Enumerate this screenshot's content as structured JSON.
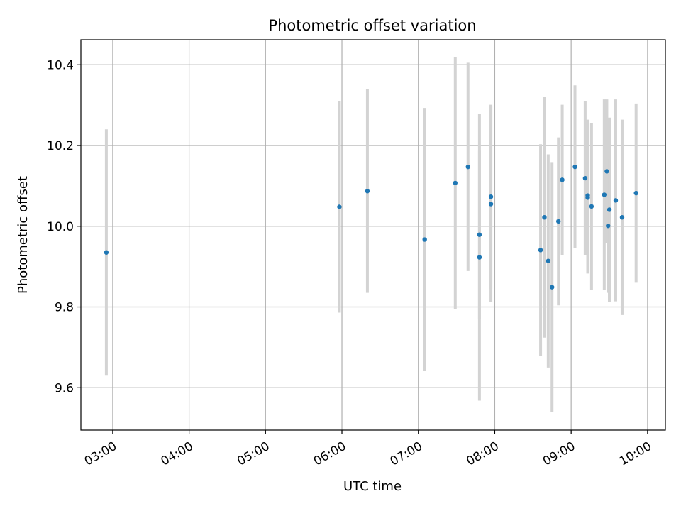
{
  "chart_data": {
    "type": "scatter",
    "title": "Photometric offset variation",
    "xlabel": "UTC time",
    "ylabel": "Photometric offset",
    "xlim": [
      "02:35",
      "10:14"
    ],
    "ylim": [
      9.495,
      10.462
    ],
    "xticks": [
      "03:00",
      "04:00",
      "05:00",
      "06:00",
      "07:00",
      "08:00",
      "09:00",
      "10:00"
    ],
    "yticks": [
      9.6,
      9.8,
      10.0,
      10.2,
      10.4
    ],
    "ytick_labels": [
      "9.6",
      "9.8",
      "10.0",
      "10.2",
      "10.4"
    ],
    "grid": true,
    "marker_color": "#1f77b4",
    "errorbar_color": "#d3d3d3",
    "series": [
      {
        "points": [
          {
            "t": "02:55",
            "y": 9.935,
            "err": 0.305
          },
          {
            "t": "05:58",
            "y": 10.048,
            "err": 0.262
          },
          {
            "t": "06:20",
            "y": 10.087,
            "err": 0.252
          },
          {
            "t": "07:05",
            "y": 9.967,
            "err": 0.326
          },
          {
            "t": "07:29",
            "y": 10.107,
            "err": 0.312
          },
          {
            "t": "07:39",
            "y": 10.147,
            "err": 0.258
          },
          {
            "t": "07:48",
            "y": 9.979,
            "err": 0.208
          },
          {
            "t": "07:48",
            "y": 9.923,
            "err": 0.355
          },
          {
            "t": "07:57",
            "y": 10.073,
            "err": 0.228
          },
          {
            "t": "07:57",
            "y": 10.055,
            "err": 0.242
          },
          {
            "t": "08:36",
            "y": 9.941,
            "err": 0.262
          },
          {
            "t": "08:39",
            "y": 10.022,
            "err": 0.298
          },
          {
            "t": "08:42",
            "y": 9.914,
            "err": 0.264
          },
          {
            "t": "08:45",
            "y": 9.849,
            "err": 0.31
          },
          {
            "t": "08:50",
            "y": 10.012,
            "err": 0.208
          },
          {
            "t": "08:53",
            "y": 10.115,
            "err": 0.186
          },
          {
            "t": "09:03",
            "y": 10.147,
            "err": 0.202
          },
          {
            "t": "09:11",
            "y": 10.119,
            "err": 0.19
          },
          {
            "t": "09:13",
            "y": 10.076,
            "err": 0.188
          },
          {
            "t": "09:13",
            "y": 10.071,
            "err": 0.188
          },
          {
            "t": "09:16",
            "y": 10.049,
            "err": 0.206
          },
          {
            "t": "09:26",
            "y": 10.078,
            "err": 0.236
          },
          {
            "t": "09:28",
            "y": 10.136,
            "err": 0.178
          },
          {
            "t": "09:29",
            "y": 10.001,
            "err": 0.166
          },
          {
            "t": "09:30",
            "y": 10.041,
            "err": 0.228
          },
          {
            "t": "09:35",
            "y": 10.064,
            "err": 0.25
          },
          {
            "t": "09:40",
            "y": 10.022,
            "err": 0.242
          },
          {
            "t": "09:51",
            "y": 10.082,
            "err": 0.222
          }
        ]
      }
    ]
  }
}
